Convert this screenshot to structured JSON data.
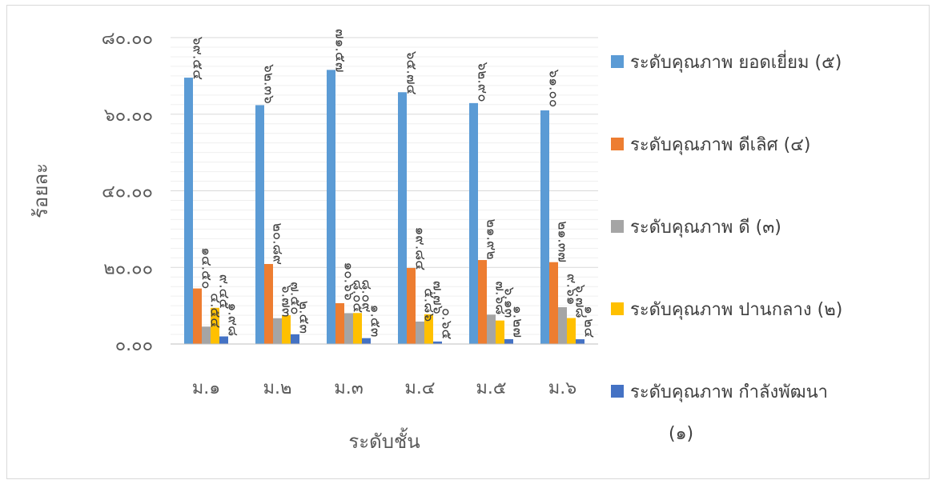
{
  "chart_data": {
    "type": "bar",
    "title": "",
    "xlabel": "ระดับชั้น",
    "ylabel": "ร้อยละ",
    "ylim": [
      0,
      80
    ],
    "yticks": [
      "๐.๐๐",
      "๒๐.๐๐",
      "๔๐.๐๐",
      "๖๐.๐๐",
      "๘๐.๐๐"
    ],
    "grid": true,
    "legend_position": "right",
    "categories": [
      "ม.๑",
      "ม.๒",
      "ม.๓",
      "ม.๔",
      "ม.๕",
      "ม.๖"
    ],
    "series": [
      {
        "name": "ระดับคุณภาพ ยอดเยี่ยม (๕)",
        "color": "#5B9BD5",
        "values": [
          69.54,
          62.36,
          71.57,
          65.74,
          62.9,
          61.0
        ],
        "labels": [
          "๖๙.๕๔",
          "๖๒.๓๖",
          "๗๑.๕๗",
          "๖๕.๗๔",
          "๖๒.๙๐",
          "๖๑.๐๐"
        ]
      },
      {
        "name": "ระดับคุณภาพ ดีเลิศ (๔)",
        "color": "#ED7D31",
        "values": [
          14.5,
          20.89,
          10.66,
          19.84,
          21.92,
          21.37
        ],
        "labels": [
          "๑๔.๕๐",
          "๒๐.๘๙",
          "๑๐.๖๖",
          "๑๙.๘๔",
          "๒๑.๙๒",
          "๒๑.๓๗"
        ]
      },
      {
        "name": "ระดับคุณภาพ ดี (๓)",
        "color": "#A5A5A5",
        "values": [
          4.54,
          6.73,
          8.05,
          5.86,
          7.68,
          9.61
        ],
        "labels": [
          "๔.๕๔",
          "๖.๗๓",
          "๘.๐๕",
          "๕.๘๖",
          "๗.๖๘",
          "๙.๖๑"
        ]
      },
      {
        "name": "ระดับคุณภาพ ปานกลาง (๒)",
        "color": "#FFC000",
        "values": [
          9.45,
          7.5,
          8.09,
          7.76,
          6.13,
          6.78
        ],
        "labels": [
          "๙.๔๕",
          "๗.๕๐",
          "๘.๐๙",
          "๗.๗๖",
          "๖.๑๓",
          "๖.๗๘"
        ]
      },
      {
        "name": "ระดับคุณภาพ กำลังพัฒนา (๑)",
        "color": "#4472C4",
        "values": [
          1.98,
          2.53,
          1.53,
          0.65,
          1.27,
          1.24
        ],
        "labels": [
          "๑.๙๘",
          "๒.๕๓",
          "๑.๕๓",
          "๐.๖๕",
          "๑.๒๗",
          "๑.๒๔"
        ]
      }
    ]
  }
}
